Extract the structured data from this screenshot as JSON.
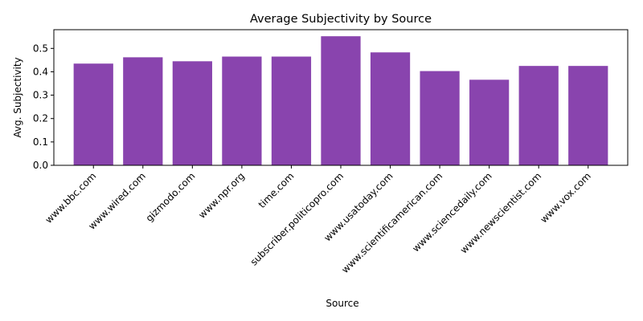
{
  "chart_data": {
    "type": "bar",
    "title": "Average Subjectivity by Source",
    "xlabel": "Source",
    "ylabel": "Avg. Subjectivity",
    "categories": [
      "www.bbc.com",
      "www.wired.com",
      "gizmodo.com",
      "www.npr.org",
      "time.com",
      "subscriber.politicopro.com",
      "www.usatoday.com",
      "www.scientificamerican.com",
      "www.sciencedaily.com",
      "www.newscientist.com",
      "www.vox.com"
    ],
    "values": [
      0.435,
      0.462,
      0.445,
      0.465,
      0.465,
      0.552,
      0.483,
      0.403,
      0.366,
      0.425,
      0.425
    ],
    "ylim": [
      0,
      0.58
    ],
    "yticks": [
      "0.0",
      "0.1",
      "0.2",
      "0.3",
      "0.4",
      "0.5"
    ],
    "bar_color": "#8944ae",
    "grid": false,
    "legend": "none"
  }
}
